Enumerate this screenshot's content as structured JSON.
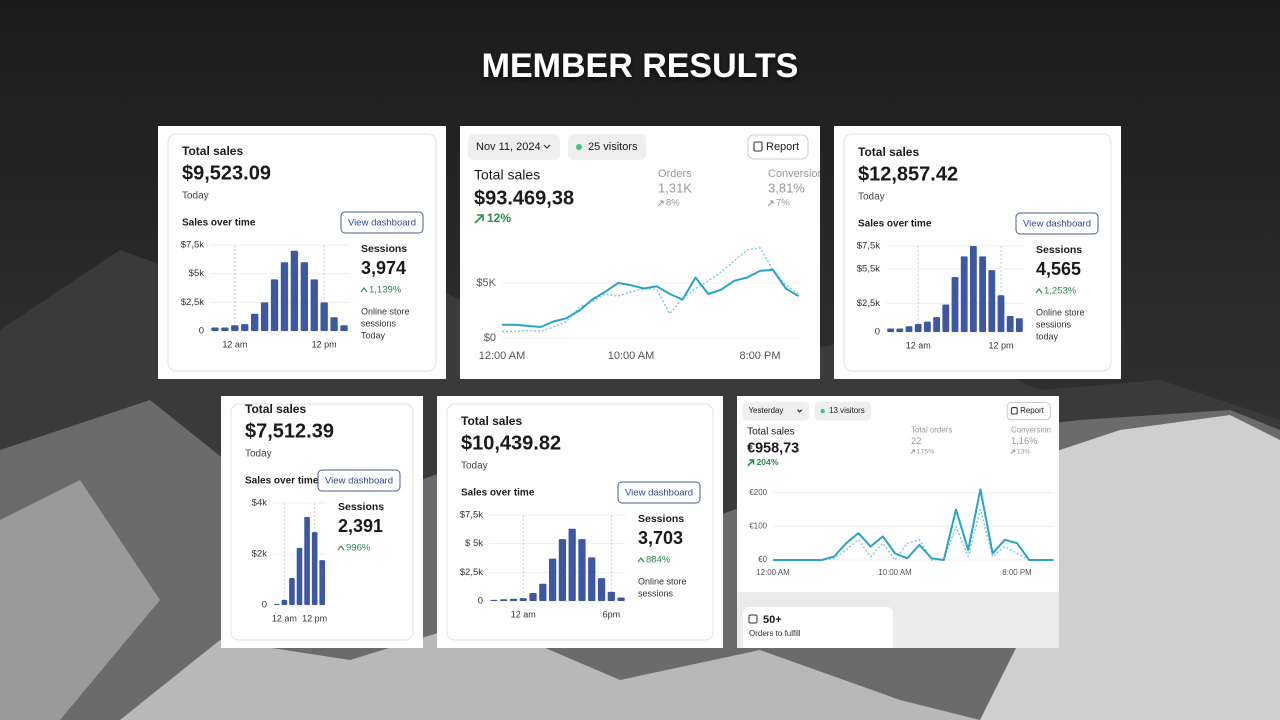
{
  "title": "MEMBER RESULTS",
  "cards": [
    {
      "total_label": "Total sales",
      "total": "$9,523.09",
      "period": "Today",
      "chart_label": "Sales over time",
      "button": "View dashboard",
      "sessions_label": "Sessions",
      "sessions": "3,974",
      "sessions_change": "1,139%",
      "sessions_note": [
        "Online store",
        "sessions",
        "Today"
      ],
      "chart": {
        "type": "bar",
        "color": "#3d57a3",
        "ylim": [
          0,
          7500
        ],
        "yticks": [
          {
            "value": 7500,
            "label": "$7,5k"
          },
          {
            "value": 5000,
            "label": "$5k"
          },
          {
            "value": 2500,
            "label": "$2,5k"
          },
          0
        ],
        "categories": [
          null,
          null,
          "12 am",
          null,
          null,
          null,
          null,
          null,
          null,
          null,
          null,
          "12 pm",
          null,
          null
        ],
        "values": [
          300,
          300,
          500,
          600,
          1500,
          2500,
          4500,
          6000,
          7000,
          6000,
          4500,
          2500,
          1200,
          500
        ]
      }
    },
    {
      "date": "Nov 11, 2024",
      "visitors": "25 visitors",
      "button": "Report",
      "total_label": "Total sales",
      "total": "$93.469,38",
      "total_change": "12%",
      "metrics": [
        {
          "label": "Orders",
          "value": "1,31K",
          "change": "8%"
        },
        {
          "label": "Conversion",
          "value": "3,81%",
          "change": "7%"
        }
      ],
      "chart": {
        "type": "line",
        "ylim": [
          0,
          9000
        ],
        "yticks": [
          {
            "value": 5000,
            "label": "$5K"
          },
          {
            "value": 0,
            "label": "$0"
          }
        ],
        "categories": [
          "12:00 AM",
          null,
          null,
          null,
          null,
          null,
          null,
          null,
          null,
          null,
          "10:00 AM",
          null,
          null,
          null,
          null,
          null,
          null,
          null,
          null,
          null,
          "8:00 PM",
          null,
          null,
          null
        ],
        "series": [
          {
            "color": "#2aa3c6",
            "style": "solid",
            "values": [
              1200,
              1200,
              1100,
              1000,
              1500,
              1800,
              2500,
              3500,
              4200,
              5000,
              4800,
              4500,
              4700,
              4000,
              3500,
              5500,
              4000,
              4400,
              5200,
              5500,
              6100,
              6200,
              4500,
              3800
            ]
          },
          {
            "color": "#7cc6dc",
            "style": "dotted",
            "values": [
              600,
              600,
              700,
              600,
              1000,
              1500,
              2800,
              3300,
              4000,
              3800,
              4200,
              4500,
              4400,
              2200,
              3600,
              4500,
              5200,
              6000,
              7000,
              8000,
              8200,
              6200,
              4800,
              4000
            ]
          }
        ]
      }
    },
    {
      "total_label": "Total sales",
      "total": "$12,857.42",
      "period": "Today",
      "chart_label": "Sales over time",
      "button": "View dashboard",
      "sessions_label": "Sessions",
      "sessions": "4,565",
      "sessions_change": "1,253%",
      "sessions_note": [
        "Online store",
        "sessions",
        "today"
      ],
      "chart": {
        "type": "bar",
        "color": "#3d57a3",
        "ylim": [
          0,
          7500
        ],
        "yticks": [
          {
            "value": 7500,
            "label": "$7,5k"
          },
          {
            "value": 5500,
            "label": "$5,5k"
          },
          {
            "value": 2500,
            "label": "$2,5k"
          },
          0
        ],
        "categories": [
          null,
          null,
          null,
          "12 am",
          null,
          null,
          null,
          null,
          null,
          null,
          null,
          null,
          "12 pm",
          null,
          null
        ],
        "values": [
          300,
          300,
          500,
          700,
          900,
          1300,
          2400,
          4800,
          6600,
          7500,
          6600,
          5400,
          3200,
          1400,
          1200
        ]
      }
    },
    {
      "total_label": "Total sales",
      "total": "$7,512.39",
      "period": "Today",
      "chart_label": "Sales over time",
      "button": "View dashboard",
      "sessions_label": "Sessions",
      "sessions": "2,391",
      "sessions_change": "996%",
      "chart": {
        "type": "bar",
        "color": "#3d57a3",
        "ylim": [
          0,
          4000
        ],
        "yticks": [
          {
            "value": 4000,
            "label": "$4k"
          },
          {
            "value": 2000,
            "label": "$2k"
          },
          0
        ],
        "categories": [
          null,
          "12 am",
          null,
          null,
          null,
          "12 pm",
          null
        ],
        "values": [
          40,
          200,
          1060,
          2240,
          3450,
          2860,
          1760
        ]
      }
    },
    {
      "total_label": "Total sales",
      "total": "$10,439.82",
      "period": "Today",
      "chart_label": "Sales over time",
      "button": "View dashboard",
      "sessions_label": "Sessions",
      "sessions": "3,703",
      "sessions_change": "884%",
      "sessions_note": [
        "Online store",
        "sessions"
      ],
      "chart": {
        "type": "bar",
        "color": "#3d57a3",
        "ylim": [
          0,
          7500
        ],
        "yticks": [
          {
            "value": 7500,
            "label": "$7,5k"
          },
          {
            "value": 2500,
            "label": "$2,5k"
          },
          {
            "value": 5000,
            "label": "$ 5k"
          },
          0
        ],
        "categories": [
          null,
          null,
          null,
          "12 am",
          null,
          null,
          null,
          null,
          null,
          null,
          null,
          null,
          "6pm",
          null
        ],
        "values": [
          100,
          150,
          200,
          250,
          700,
          1500,
          3700,
          5400,
          6300,
          5400,
          3800,
          2000,
          800,
          300
        ]
      }
    },
    {
      "date": "Yesterday",
      "visitors": "13 visitors",
      "button": "Report",
      "total_label": "Total sales",
      "total": "€958,73",
      "total_change": "204%",
      "metrics": [
        {
          "label": "Total orders",
          "value": "22",
          "change": "175%"
        },
        {
          "label": "Conversion",
          "value": "1,16%",
          "change": "13%"
        }
      ],
      "fulfill": {
        "value": "50+",
        "label": "Orders to fulfill"
      },
      "chart": {
        "type": "line",
        "ylim": [
          0,
          220
        ],
        "yticks": [
          {
            "value": 200,
            "label": "€200"
          },
          {
            "value": 100,
            "label": "€100"
          },
          {
            "value": 0,
            "label": "€0"
          }
        ],
        "categories": [
          "12:00 AM",
          null,
          null,
          null,
          null,
          null,
          null,
          null,
          null,
          null,
          "10:00 AM",
          null,
          null,
          null,
          null,
          null,
          null,
          null,
          null,
          null,
          "8:00 PM",
          null,
          null,
          null
        ],
        "series": [
          {
            "color": "#2aa3c6",
            "style": "solid",
            "values": [
              0,
              0,
              0,
              0,
              0,
              10,
              50,
              80,
              40,
              70,
              20,
              5,
              45,
              5,
              0,
              150,
              30,
              210,
              20,
              60,
              50,
              0,
              0,
              0
            ]
          },
          {
            "color": "#7cc6dc",
            "style": "dotted",
            "values": [
              0,
              0,
              0,
              0,
              0,
              5,
              30,
              60,
              10,
              50,
              0,
              50,
              60,
              0,
              0,
              100,
              10,
              150,
              10,
              40,
              20,
              0,
              0,
              0
            ]
          }
        ]
      }
    }
  ]
}
